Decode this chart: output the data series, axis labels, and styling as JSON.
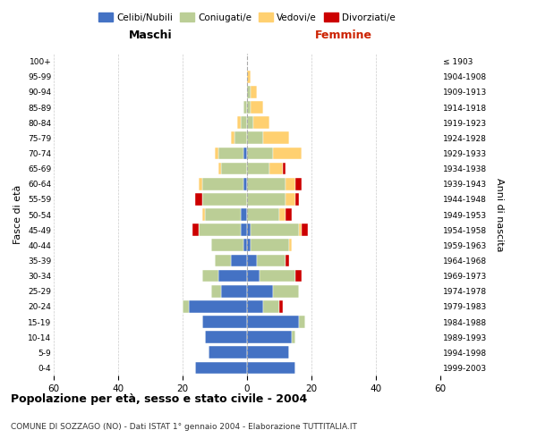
{
  "age_groups": [
    "0-4",
    "5-9",
    "10-14",
    "15-19",
    "20-24",
    "25-29",
    "30-34",
    "35-39",
    "40-44",
    "45-49",
    "50-54",
    "55-59",
    "60-64",
    "65-69",
    "70-74",
    "75-79",
    "80-84",
    "85-89",
    "90-94",
    "95-99",
    "100+"
  ],
  "birth_years": [
    "1999-2003",
    "1994-1998",
    "1989-1993",
    "1984-1988",
    "1979-1983",
    "1974-1978",
    "1969-1973",
    "1964-1968",
    "1959-1963",
    "1954-1958",
    "1949-1953",
    "1944-1948",
    "1939-1943",
    "1934-1938",
    "1929-1933",
    "1924-1928",
    "1919-1923",
    "1914-1918",
    "1909-1913",
    "1904-1908",
    "≤ 1903"
  ],
  "male": {
    "celibi": [
      16,
      12,
      13,
      14,
      18,
      8,
      9,
      5,
      1,
      2,
      2,
      0,
      1,
      0,
      1,
      0,
      0,
      0,
      0,
      0,
      0
    ],
    "coniugati": [
      0,
      0,
      0,
      0,
      2,
      3,
      5,
      5,
      10,
      13,
      11,
      14,
      13,
      8,
      8,
      4,
      2,
      1,
      0,
      0,
      0
    ],
    "vedovi": [
      0,
      0,
      0,
      0,
      0,
      0,
      0,
      0,
      0,
      0,
      1,
      0,
      1,
      1,
      1,
      1,
      1,
      0,
      0,
      0,
      0
    ],
    "divorziati": [
      0,
      0,
      0,
      0,
      0,
      0,
      0,
      0,
      0,
      2,
      0,
      2,
      0,
      0,
      0,
      0,
      0,
      0,
      0,
      0,
      0
    ]
  },
  "female": {
    "nubili": [
      15,
      13,
      14,
      16,
      5,
      8,
      4,
      3,
      1,
      1,
      0,
      0,
      0,
      0,
      0,
      0,
      0,
      0,
      0,
      0,
      0
    ],
    "coniugate": [
      0,
      0,
      1,
      2,
      5,
      8,
      11,
      9,
      12,
      15,
      10,
      12,
      12,
      7,
      8,
      5,
      2,
      1,
      1,
      0,
      0
    ],
    "vedove": [
      0,
      0,
      0,
      0,
      0,
      0,
      0,
      0,
      1,
      1,
      2,
      3,
      3,
      4,
      9,
      8,
      5,
      4,
      2,
      1,
      0
    ],
    "divorziate": [
      0,
      0,
      0,
      0,
      1,
      0,
      2,
      1,
      0,
      2,
      2,
      1,
      2,
      1,
      0,
      0,
      0,
      0,
      0,
      0,
      0
    ]
  },
  "colors": {
    "celibi_nubili": "#4472C4",
    "coniugati": "#BBCE96",
    "vedovi": "#FFD070",
    "divorziati": "#CC0000"
  },
  "title": "Popolazione per età, sesso e stato civile - 2004",
  "subtitle": "COMUNE DI SOZZAGO (NO) - Dati ISTAT 1° gennaio 2004 - Elaborazione TUTTITALIA.IT",
  "xlabel_left": "Maschi",
  "xlabel_right": "Femmine",
  "ylabel_left": "Fasce di età",
  "ylabel_right": "Anni di nascita",
  "xlim": 60,
  "background_color": "#ffffff",
  "grid_color": "#cccccc"
}
